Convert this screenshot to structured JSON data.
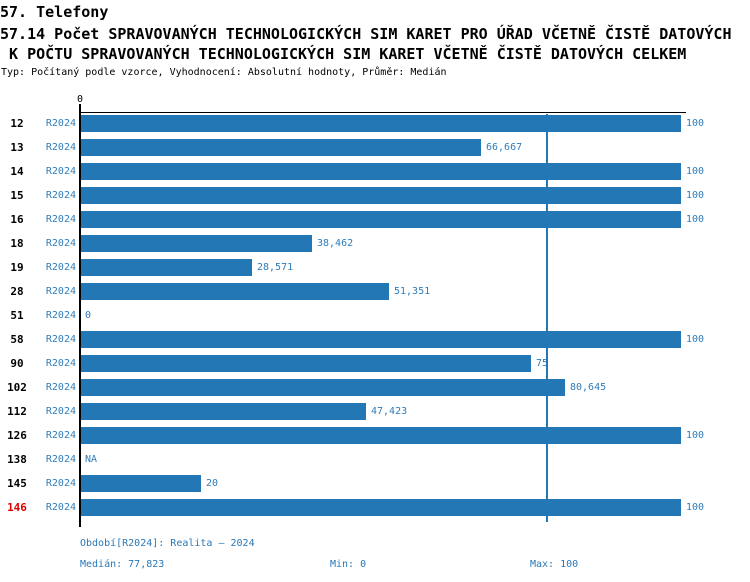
{
  "header": {
    "section_title": "57. Telefony",
    "chart_title_line1": "57.14 Počet SPRAVOVANÝCH TECHNOLOGICKÝCH SIM KARET PRO ÚŘAD VČETNĚ ČISTĚ DATOVÝCH",
    "chart_title_line2": " K POČTU SPRAVOVANÝCH TECHNOLOGICKÝCH SIM KARET VČETNĚ ČISTĚ DATOVÝCH CELKEM",
    "meta_line": "Typ: Počítaný podle vzorce, Vyhodnocení: Absolutní hodnoty, Průměr: Medián"
  },
  "chart_data": {
    "type": "bar",
    "orientation": "horizontal",
    "title": "57.14 Počet SPRAVOVANÝCH TECHNOLOGICKÝCH SIM KARET PRO ÚŘAD VČETNĚ ČISTĚ DATOVÝCH K POČTU SPRAVOVANÝCH TECHNOLOGICKÝCH SIM KARET VČETNĚ ČISTĚ DATOVÝCH CELKEM",
    "series_name": "R2024",
    "xlim": [
      0,
      100
    ],
    "x_axis_origin_label": "0",
    "grid": false,
    "legend_position": "none",
    "median_value": 77.823,
    "median_line_shown": true,
    "highlighted_category": "146",
    "categories": [
      "12",
      "13",
      "14",
      "15",
      "16",
      "18",
      "19",
      "28",
      "51",
      "58",
      "90",
      "102",
      "112",
      "126",
      "138",
      "145",
      "146"
    ],
    "values": [
      100,
      66.667,
      100,
      100,
      100,
      38.462,
      28.571,
      51.351,
      0,
      100,
      75,
      80.645,
      47.423,
      100,
      null,
      20,
      100
    ],
    "rows": [
      {
        "category": "12",
        "period": "R2024",
        "value": 100,
        "label": "100",
        "highlight": false
      },
      {
        "category": "13",
        "period": "R2024",
        "value": 66.667,
        "label": "66,667",
        "highlight": false
      },
      {
        "category": "14",
        "period": "R2024",
        "value": 100,
        "label": "100",
        "highlight": false
      },
      {
        "category": "15",
        "period": "R2024",
        "value": 100,
        "label": "100",
        "highlight": false
      },
      {
        "category": "16",
        "period": "R2024",
        "value": 100,
        "label": "100",
        "highlight": false
      },
      {
        "category": "18",
        "period": "R2024",
        "value": 38.462,
        "label": "38,462",
        "highlight": false
      },
      {
        "category": "19",
        "period": "R2024",
        "value": 28.571,
        "label": "28,571",
        "highlight": false
      },
      {
        "category": "28",
        "period": "R2024",
        "value": 51.351,
        "label": "51,351",
        "highlight": false
      },
      {
        "category": "51",
        "period": "R2024",
        "value": 0,
        "label": "0",
        "highlight": false
      },
      {
        "category": "58",
        "period": "R2024",
        "value": 100,
        "label": "100",
        "highlight": false
      },
      {
        "category": "90",
        "period": "R2024",
        "value": 75,
        "label": "75",
        "highlight": false
      },
      {
        "category": "102",
        "period": "R2024",
        "value": 80.645,
        "label": "80,645",
        "highlight": false
      },
      {
        "category": "112",
        "period": "R2024",
        "value": 47.423,
        "label": "47,423",
        "highlight": false
      },
      {
        "category": "126",
        "period": "R2024",
        "value": 100,
        "label": "100",
        "highlight": false
      },
      {
        "category": "138",
        "period": "R2024",
        "value": null,
        "label": "NA",
        "highlight": false
      },
      {
        "category": "145",
        "period": "R2024",
        "value": 20,
        "label": "20",
        "highlight": false
      },
      {
        "category": "146",
        "period": "R2024",
        "value": 100,
        "label": "100",
        "highlight": true
      }
    ]
  },
  "footer": {
    "period_line": "Období[R2024]: Realita – 2024",
    "median_label": "Medián: 77,823",
    "min_label": "Min: 0",
    "max_label": "Max: 100"
  },
  "colors": {
    "bar_blue": "#2377b4",
    "text_blue": "#2e7cba",
    "highlight_red": "#dd0000",
    "axis_black": "#000000",
    "background": "#ffffff"
  }
}
